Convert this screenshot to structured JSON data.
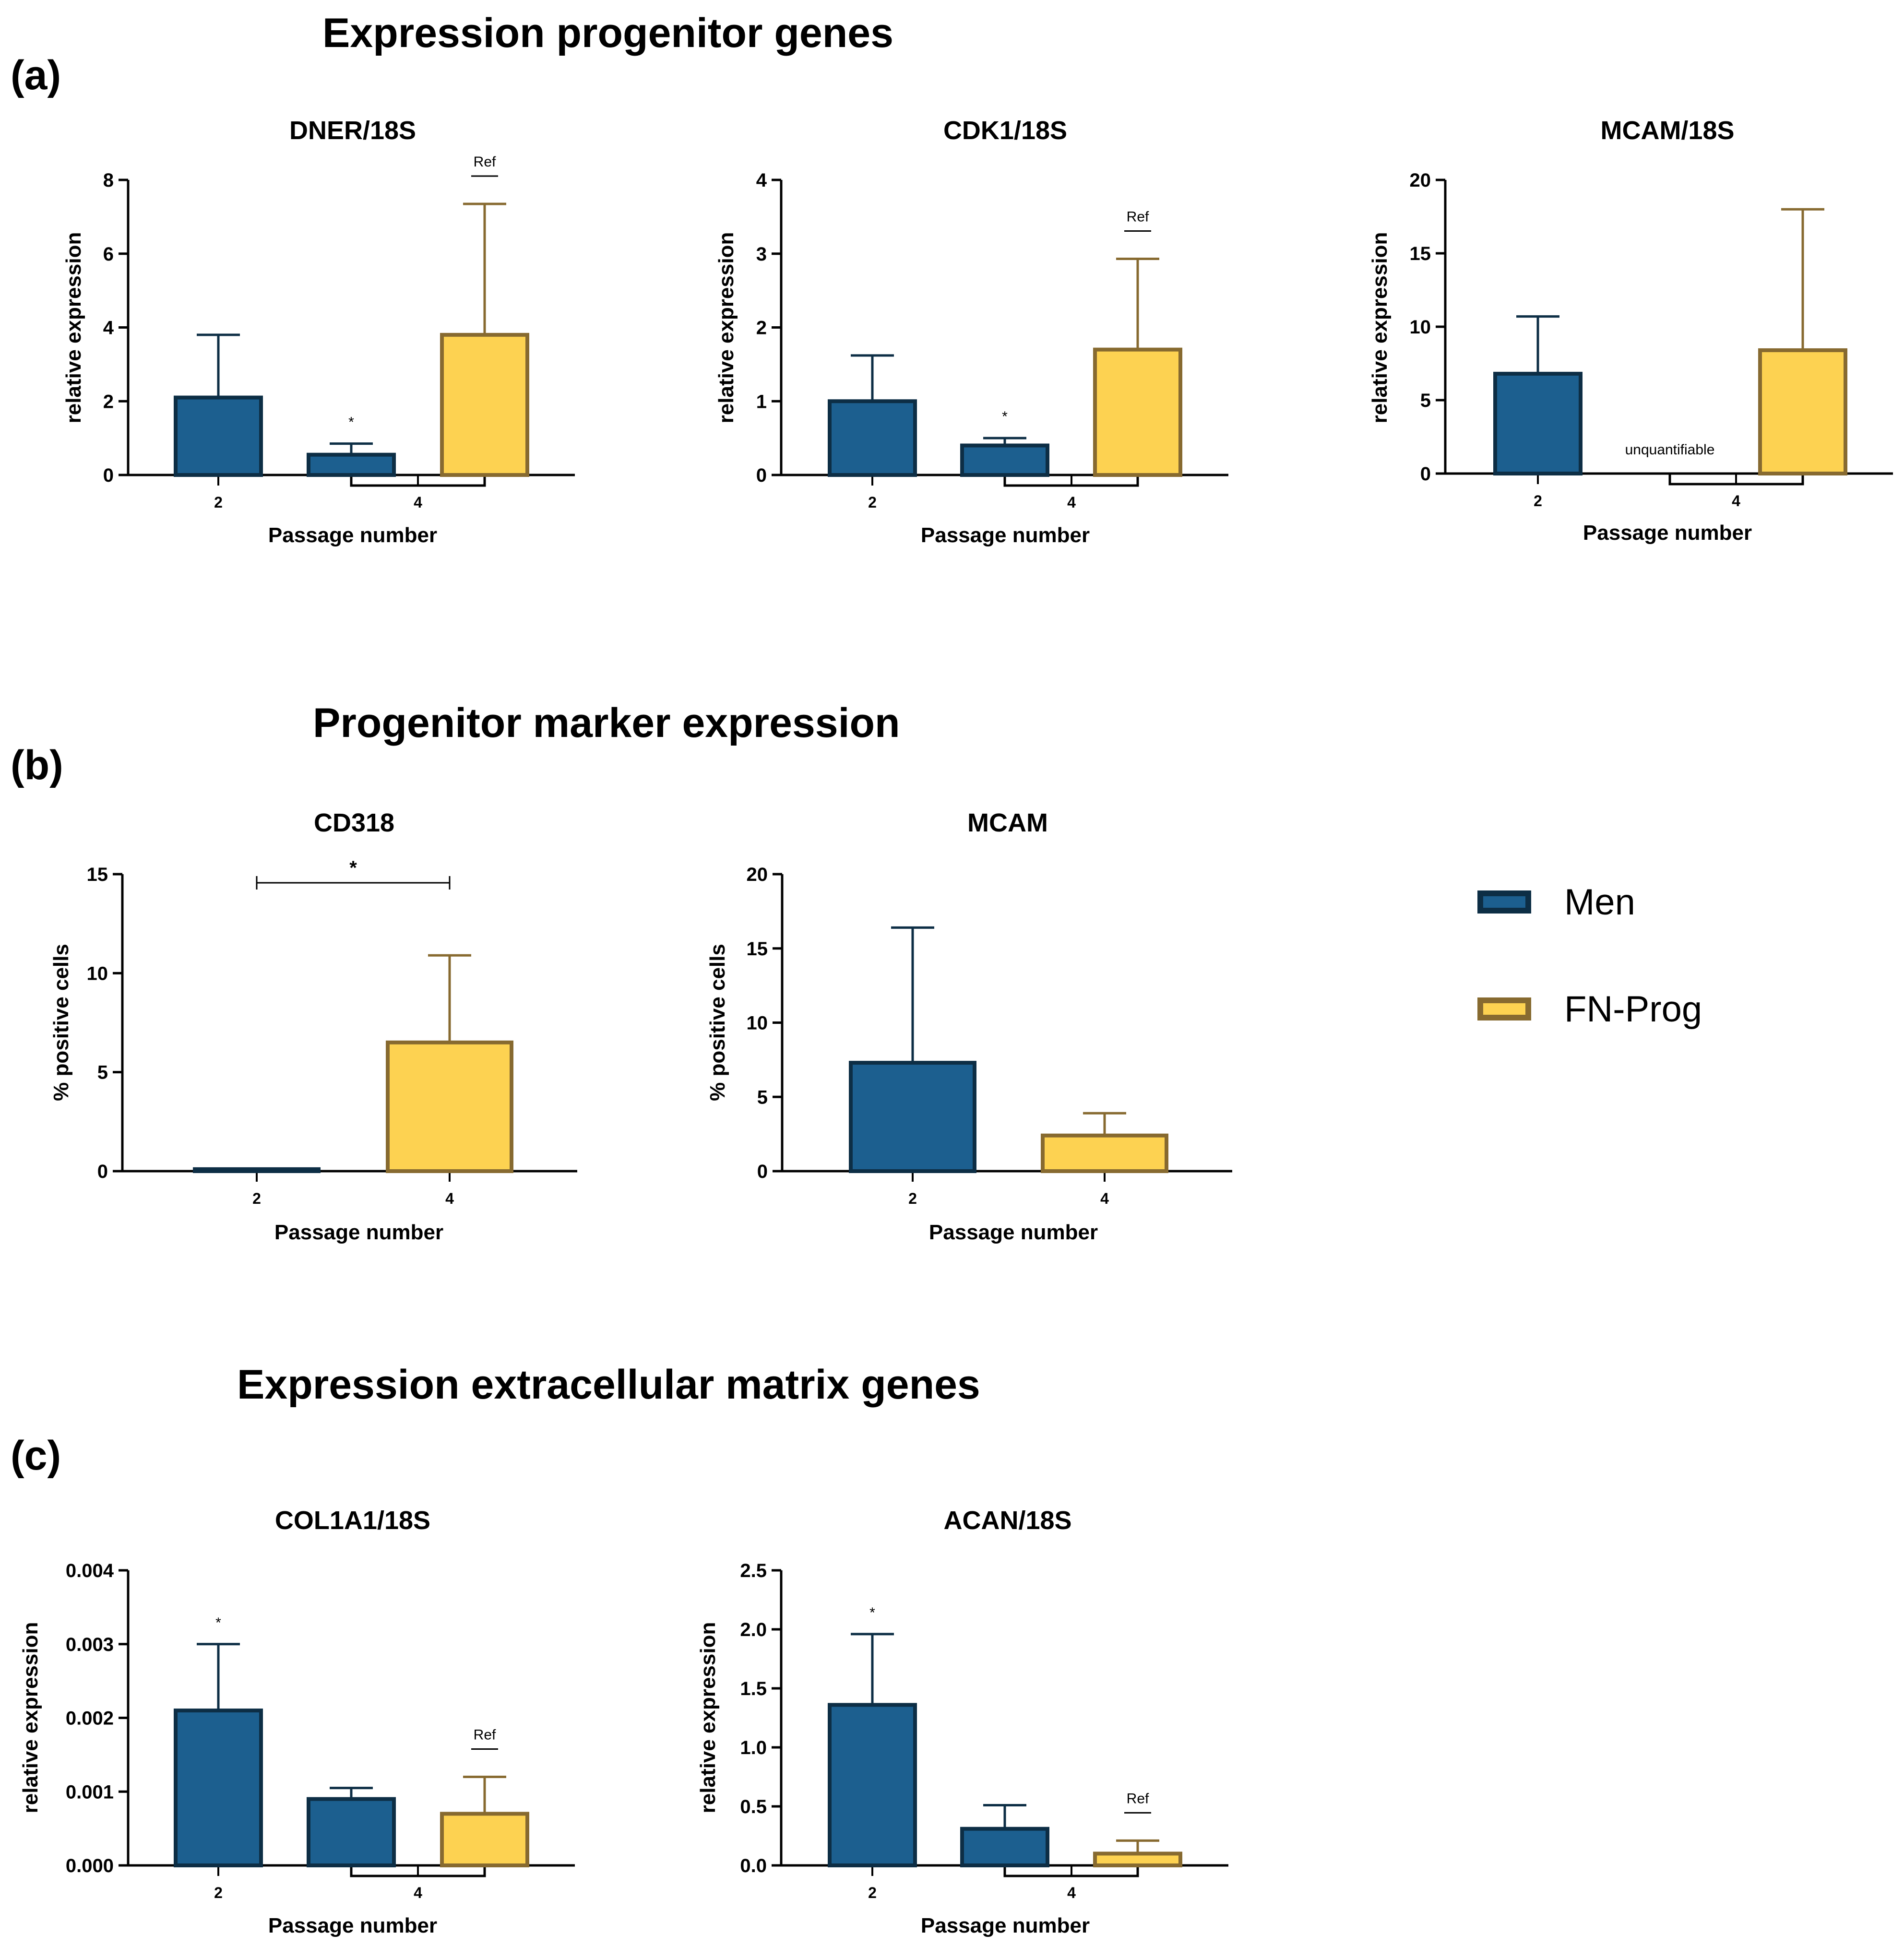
{
  "sections": {
    "a": {
      "label": "(a)",
      "title": "Expression progenitor genes"
    },
    "b": {
      "label": "(b)",
      "title": "Progenitor marker expression"
    },
    "c": {
      "label": "(c)",
      "title": "Expression extracellular matrix genes"
    }
  },
  "legend": [
    {
      "name": "Men",
      "fill": "#1c5f8f",
      "stroke": "#0d2e45"
    },
    {
      "name": "FN-Prog",
      "fill": "#fdd251",
      "stroke": "#876a30"
    }
  ],
  "chart_data": [
    {
      "id": "dner",
      "type": "bar",
      "title": "DNER/18S",
      "xlabel": "Passage number",
      "ylabel": "relative expression",
      "ylim": [
        0,
        8
      ],
      "yticks": [
        "0",
        "2",
        "4",
        "6",
        "8"
      ],
      "group_labels": [
        "2",
        "4"
      ],
      "bars": [
        {
          "series": "Men",
          "passage": "2",
          "value": 2.1,
          "error": 3.8
        },
        {
          "series": "Men",
          "passage": "4",
          "value": 0.55,
          "error": 0.85,
          "annotation": "*"
        },
        {
          "series": "FN-Prog",
          "passage": "4",
          "value": 3.8,
          "error": 7.35,
          "annotation": "Ref"
        }
      ]
    },
    {
      "id": "cdk1",
      "type": "bar",
      "title": "CDK1/18S",
      "xlabel": "Passage number",
      "ylabel": "relative expression",
      "ylim": [
        0,
        4
      ],
      "yticks": [
        "0",
        "1",
        "2",
        "3",
        "4"
      ],
      "group_labels": [
        "2",
        "4"
      ],
      "bars": [
        {
          "series": "Men",
          "passage": "2",
          "value": 1.0,
          "error": 1.62
        },
        {
          "series": "Men",
          "passage": "4",
          "value": 0.4,
          "error": 0.5,
          "annotation": "*"
        },
        {
          "series": "FN-Prog",
          "passage": "4",
          "value": 1.7,
          "error": 2.93,
          "annotation": "Ref"
        }
      ]
    },
    {
      "id": "mcam18s",
      "type": "bar",
      "title": "MCAM/18S",
      "xlabel": "Passage number",
      "ylabel": "relative expression",
      "ylim": [
        0,
        20
      ],
      "yticks": [
        "0",
        "5",
        "10",
        "15",
        "20"
      ],
      "group_labels": [
        "2",
        "4"
      ],
      "bars": [
        {
          "series": "Men",
          "passage": "2",
          "value": 6.8,
          "error": 10.7
        },
        {
          "series": "Men",
          "passage": "4",
          "value": 0,
          "error": 0,
          "annotation": "unquantifiable"
        },
        {
          "series": "FN-Prog",
          "passage": "4",
          "value": 8.4,
          "error": 18.0
        }
      ]
    },
    {
      "id": "cd318",
      "type": "bar",
      "title": "CD318",
      "xlabel": "Passage number",
      "ylabel": "% positive cells",
      "ylim": [
        0,
        15
      ],
      "yticks": [
        "0",
        "5",
        "10",
        "15"
      ],
      "group_labels": [
        "2",
        "4"
      ],
      "bars": [
        {
          "series": "Men",
          "passage": "2",
          "value": 0.1,
          "error": 0.1
        },
        {
          "series": "FN-Prog",
          "passage": "4",
          "value": 6.5,
          "error": 10.9
        }
      ],
      "significance": {
        "from": "2",
        "to": "4",
        "label": "*"
      }
    },
    {
      "id": "mcam",
      "type": "bar",
      "title": "MCAM",
      "xlabel": "Passage number",
      "ylabel": "% positive cells",
      "ylim": [
        0,
        20
      ],
      "yticks": [
        "0",
        "5",
        "10",
        "15",
        "20"
      ],
      "group_labels": [
        "2",
        "4"
      ],
      "bars": [
        {
          "series": "Men",
          "passage": "2",
          "value": 7.3,
          "error": 16.4
        },
        {
          "series": "FN-Prog",
          "passage": "4",
          "value": 2.4,
          "error": 3.9
        }
      ]
    },
    {
      "id": "col1a1",
      "type": "bar",
      "title": "COL1A1/18S",
      "xlabel": "Passage number",
      "ylabel": "relative expression",
      "ylim": [
        0,
        0.004
      ],
      "yticks": [
        "0.000",
        "0.001",
        "0.002",
        "0.003",
        "0.004"
      ],
      "group_labels": [
        "2",
        "4"
      ],
      "bars": [
        {
          "series": "Men",
          "passage": "2",
          "value": 0.0021,
          "error": 0.003,
          "annotation": "*"
        },
        {
          "series": "Men",
          "passage": "4",
          "value": 0.0009,
          "error": 0.00105
        },
        {
          "series": "FN-Prog",
          "passage": "4",
          "value": 0.0007,
          "error": 0.0012,
          "annotation": "Ref"
        }
      ]
    },
    {
      "id": "acan",
      "type": "bar",
      "title": "ACAN/18S",
      "xlabel": "Passage number",
      "ylabel": "relative expression",
      "ylim": [
        0,
        2.5
      ],
      "yticks": [
        "0.0",
        "0.5",
        "1.0",
        "1.5",
        "2.0",
        "2.5"
      ],
      "group_labels": [
        "2",
        "4"
      ],
      "bars": [
        {
          "series": "Men",
          "passage": "2",
          "value": 1.36,
          "error": 1.96,
          "annotation": "*"
        },
        {
          "series": "Men",
          "passage": "4",
          "value": 0.31,
          "error": 0.51
        },
        {
          "series": "FN-Prog",
          "passage": "4",
          "value": 0.1,
          "error": 0.21,
          "annotation": "Ref"
        }
      ]
    }
  ]
}
